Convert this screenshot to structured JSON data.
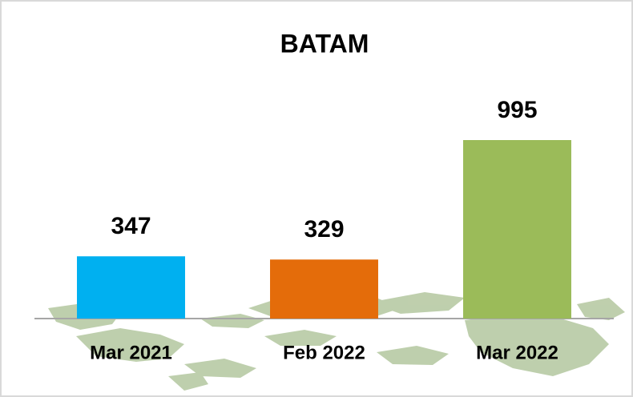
{
  "chart_data": {
    "type": "bar",
    "title": "BATAM",
    "categories": [
      "Mar 2021",
      "Feb 2022",
      "Mar 2022"
    ],
    "values": [
      347,
      329,
      995
    ],
    "colors": [
      "#00b0f0",
      "#e46c0a",
      "#9bbb59"
    ]
  }
}
